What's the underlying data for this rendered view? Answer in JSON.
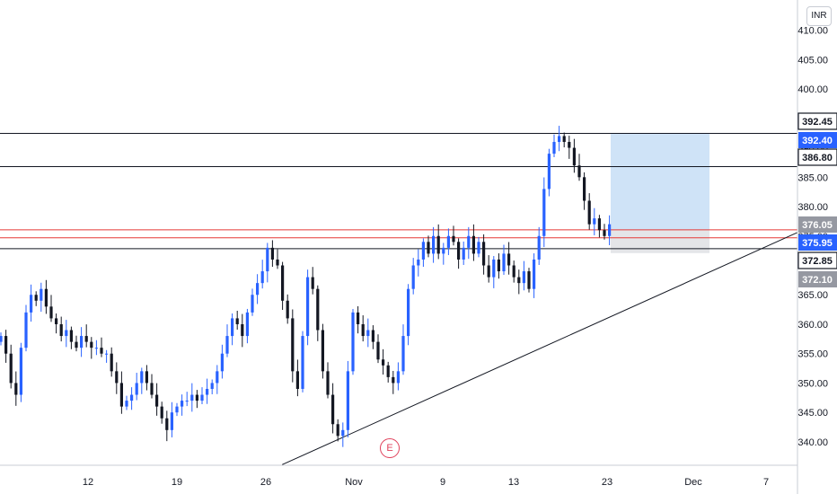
{
  "currency": "INR",
  "earnings_marker": "E",
  "colors": {
    "up": "#2962ff",
    "down": "#131722",
    "red_line": "#e53935",
    "black_line": "#131722",
    "target_zone": "#cfe3f7",
    "stop_zone": "#e4e5e8",
    "blue_tag": "#2962ff",
    "grey_tag": "#9598a1"
  },
  "chart_data": {
    "type": "candlestick",
    "ylim": [
      338,
      413
    ],
    "y_ticks": [
      "340.00",
      "345.00",
      "350.00",
      "355.00",
      "360.00",
      "365.00",
      "370.00",
      "375.00",
      "380.00",
      "385.00",
      "390.00",
      "395.00",
      "400.00",
      "405.00",
      "410.00"
    ],
    "x_ticks": [
      "12",
      "19",
      "26",
      "Nov",
      "9",
      "13",
      "23",
      "Dec",
      "7"
    ],
    "price_tags": [
      {
        "label": "392.45",
        "style": "black"
      },
      {
        "label": "392.40",
        "style": "blue"
      },
      {
        "label": "386.80",
        "style": "black"
      },
      {
        "label": "376.05",
        "style": "grey"
      },
      {
        "label": "375.95",
        "style": "blue"
      },
      {
        "label": "372.85",
        "style": "black"
      },
      {
        "label": "372.10",
        "style": "grey"
      }
    ],
    "horizontal_lines": [
      {
        "price": 392.45,
        "color": "black"
      },
      {
        "price": 386.8,
        "color": "black"
      },
      {
        "price": 376.05,
        "color": "red"
      },
      {
        "price": 374.7,
        "color": "red"
      },
      {
        "price": 372.85,
        "color": "black"
      }
    ],
    "position": {
      "entry": 376.05,
      "target": 392.45,
      "stop": 372.1
    },
    "trendline": {
      "from_close": 338.1,
      "to_close": 375.6
    },
    "closes": [
      358,
      355,
      350,
      348,
      356,
      362,
      365,
      364,
      366,
      363,
      361,
      360,
      358,
      359,
      357,
      356,
      358,
      357,
      356,
      356,
      355,
      355,
      352,
      350,
      346,
      347,
      348,
      350,
      352,
      350,
      348,
      346,
      344,
      342,
      345,
      346,
      347,
      347,
      348,
      347,
      348,
      349,
      350,
      352,
      355,
      358,
      361,
      360,
      358,
      362,
      365,
      367,
      369,
      373,
      371,
      370,
      364,
      361,
      352,
      349,
      358,
      368,
      366,
      359,
      352,
      348,
      343,
      341,
      342,
      352,
      362,
      360,
      358,
      359,
      357,
      354,
      353,
      351,
      350,
      352,
      358,
      366,
      370,
      371,
      374,
      372,
      375,
      372,
      373,
      375,
      374,
      371,
      373,
      375,
      372,
      374,
      370,
      368,
      371,
      369,
      372,
      370,
      368,
      367,
      369,
      366,
      371,
      375,
      383,
      389,
      391,
      392,
      391,
      390,
      387,
      385,
      381,
      377,
      378,
      376,
      375,
      377
    ]
  }
}
